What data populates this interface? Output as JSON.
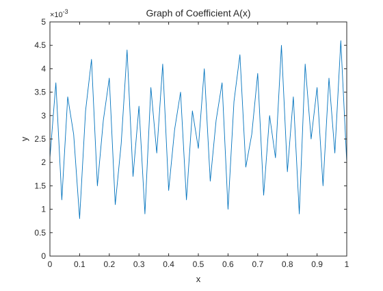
{
  "chart_data": {
    "type": "line",
    "title": "Graph of Coefficient A(x)",
    "xlabel": "x",
    "ylabel": "y",
    "xlim": [
      0,
      1
    ],
    "ylim": [
      0,
      0.005
    ],
    "y_exponent_label": "×10",
    "y_exponent_power": "-3",
    "x_ticks": [
      "0",
      "0.1",
      "0.2",
      "0.3",
      "0.4",
      "0.5",
      "0.6",
      "0.7",
      "0.8",
      "0.9",
      "1"
    ],
    "y_ticks": [
      "0",
      "0.5",
      "1",
      "1.5",
      "2",
      "2.5",
      "3",
      "3.5",
      "4",
      "4.5",
      "5"
    ],
    "grid": false,
    "box": true,
    "line_color": "#0072BD",
    "series": [
      {
        "x": [
          0,
          0.02,
          0.04,
          0.06,
          0.08,
          0.1,
          0.12,
          0.14,
          0.16,
          0.18,
          0.2,
          0.22,
          0.24,
          0.26,
          0.28,
          0.3,
          0.32,
          0.34,
          0.36,
          0.38,
          0.4,
          0.42,
          0.44,
          0.46,
          0.48,
          0.5,
          0.52,
          0.54,
          0.56,
          0.58,
          0.6,
          0.62,
          0.64,
          0.66,
          0.68,
          0.7,
          0.72,
          0.74,
          0.76,
          0.78,
          0.8,
          0.82,
          0.84,
          0.86,
          0.88,
          0.9,
          0.92,
          0.94,
          0.96,
          0.98,
          1.0
        ],
        "values": [
          0.0021,
          0.0037,
          0.0012,
          0.0034,
          0.0026,
          0.0008,
          0.0031,
          0.0042,
          0.0015,
          0.0029,
          0.0038,
          0.0011,
          0.0024,
          0.0044,
          0.0017,
          0.0032,
          0.0009,
          0.0036,
          0.0022,
          0.0041,
          0.0014,
          0.0027,
          0.0035,
          0.0012,
          0.0031,
          0.0023,
          0.004,
          0.0016,
          0.0029,
          0.0037,
          0.001,
          0.0033,
          0.0043,
          0.0019,
          0.0026,
          0.0039,
          0.0013,
          0.003,
          0.0021,
          0.0045,
          0.0018,
          0.0034,
          0.0009,
          0.0041,
          0.0025,
          0.0036,
          0.0015,
          0.0038,
          0.0022,
          0.0046,
          0.002
        ]
      }
    ]
  }
}
